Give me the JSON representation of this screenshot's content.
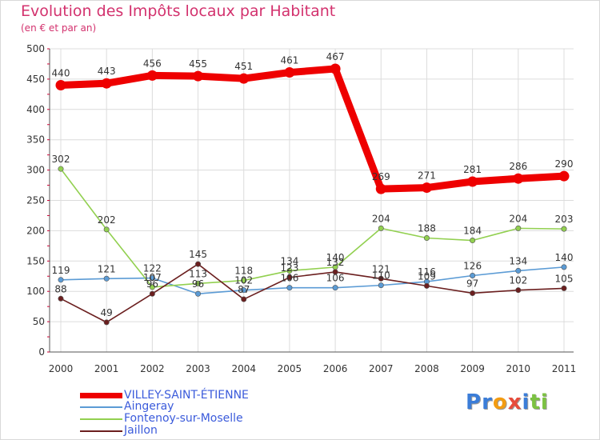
{
  "title": "Evolution des Impôts locaux par Habitant",
  "subtitle": "(en € et par an)",
  "logo_text": "Proxiti",
  "chart_data": {
    "type": "line",
    "title": "Evolution des Impôts locaux par Habitant",
    "subtitle": "(en € et par an)",
    "xlabel": "",
    "ylabel": "",
    "ylim": [
      0,
      500
    ],
    "yticks": [
      "0",
      "50",
      "100",
      "150",
      "200",
      "250",
      "300",
      "350",
      "400",
      "450",
      "500"
    ],
    "grid": true,
    "categories": [
      "2000",
      "2001",
      "2002",
      "2003",
      "2004",
      "2005",
      "2006",
      "2007",
      "2008",
      "2009",
      "2010",
      "2011"
    ],
    "series": [
      {
        "name": "VILLEY-SAINT-ÉTIENNE",
        "color": "#ee0000",
        "values": [
          440,
          443,
          456,
          455,
          451,
          461,
          467,
          269,
          271,
          281,
          286,
          290
        ],
        "labels": [
          "440",
          "443",
          "456",
          "455",
          "451",
          "461",
          "467",
          "269",
          "271",
          "281",
          "286",
          "290"
        ]
      },
      {
        "name": "Aingeray",
        "color": "#5b9bd5",
        "values": [
          119,
          121,
          122,
          96,
          102,
          106,
          106,
          110,
          116,
          126,
          134,
          140
        ],
        "labels": [
          "119",
          "121",
          "122",
          "96",
          "102",
          "106",
          "106",
          "110",
          "116",
          "126",
          "134",
          "140"
        ]
      },
      {
        "name": "Fontenoy-sur-Moselle",
        "color": "#92d050",
        "values": [
          302,
          202,
          107,
          113,
          118,
          134,
          140,
          204,
          188,
          184,
          204,
          203
        ],
        "labels": [
          "302",
          "202",
          "107",
          "113",
          "118",
          "134",
          "140",
          "204",
          "188",
          "184",
          "204",
          "203"
        ]
      },
      {
        "name": "Jaillon",
        "color": "#6b1f1f",
        "values": [
          88,
          49,
          96,
          145,
          87,
          123,
          132,
          121,
          109,
          97,
          102,
          105
        ],
        "labels": [
          "88",
          "49",
          "96",
          "145",
          "87",
          "123",
          "132",
          "121",
          "109",
          "97",
          "102",
          "105"
        ]
      }
    ]
  }
}
